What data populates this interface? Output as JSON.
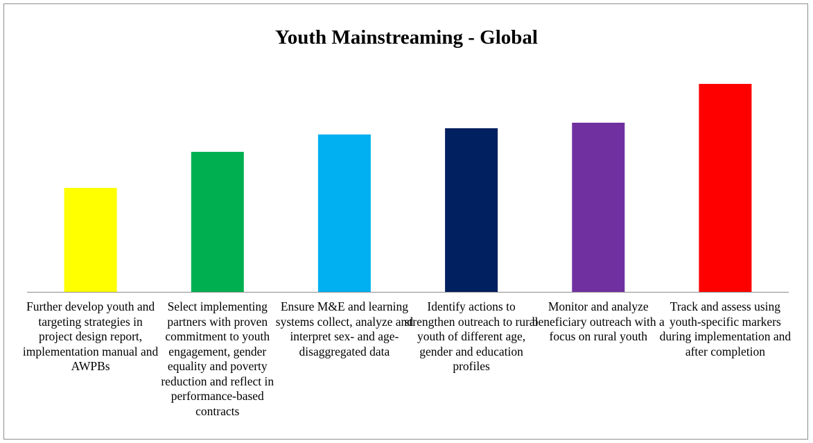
{
  "chart_data": {
    "type": "bar",
    "title": "Youth Mainstreaming - Global",
    "xlabel": "",
    "ylabel": "",
    "categories": [
      "Further develop youth and targeting strategies in project design report, implementation manual and AWPBs",
      "Select implementing partners with proven commitment to youth engagement, gender equality and poverty reduction and reflect in performance-based contracts",
      "Ensure M&E and learning systems collect, analyze and interpret sex- and age-disaggregated data",
      "Identify actions to strengthen outreach to rural youth of different age, gender and education profiles",
      "Monitor and analyze beneficiary outreach with a focus on rural youth",
      "Track and assess using youth-specific markers during implementation and after completion"
    ],
    "values": [
      150,
      202,
      227,
      236,
      244,
      300
    ],
    "colors": [
      "#ffff00",
      "#00b050",
      "#00b0f0",
      "#002060",
      "#7030a0",
      "#ff0000"
    ],
    "ylim": [
      0,
      330
    ],
    "grid": false,
    "legend": "none"
  }
}
